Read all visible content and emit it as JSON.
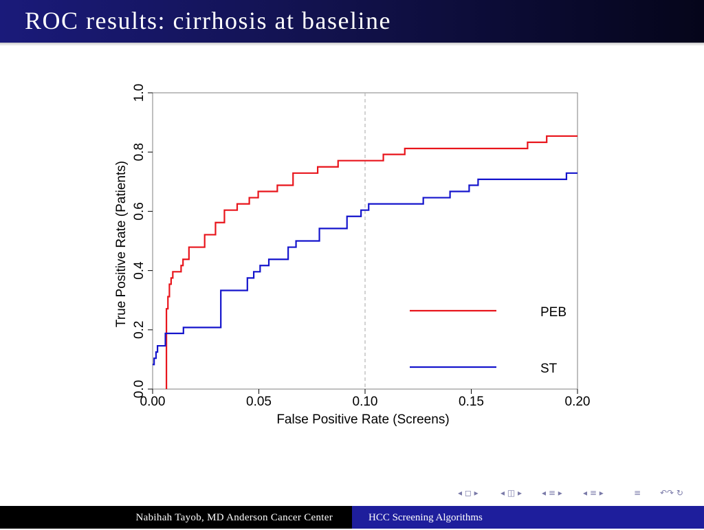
{
  "slide": {
    "title": "ROC results: cirrhosis at baseline"
  },
  "footer": {
    "left": "Nabihah Tayob, MD Anderson Cancer Center",
    "right": "HCC Screening Algorithms"
  },
  "nav": {
    "icons": [
      "◂ ◻ ▸",
      "◂ ◫ ▸",
      "◂ ≡ ▸",
      "◂ ≡ ▸",
      "≡",
      "↶↷ ↻"
    ],
    "color": "#7a7aa8"
  },
  "colors": {
    "header_bg": "#12124e",
    "footer_left_bg": "#000000",
    "footer_right_bg": "#1e1e9c"
  },
  "chart_data": {
    "type": "line",
    "xlabel": "False Positive Rate (Screens)",
    "ylabel": "True Positive Rate (Patients)",
    "xlim": [
      0,
      0.2
    ],
    "ylim": [
      0,
      1.0
    ],
    "xticks": [
      "0.00",
      "0.05",
      "0.10",
      "0.15",
      "0.20"
    ],
    "yticks": [
      "0.0",
      "0.2",
      "0.4",
      "0.6",
      "0.8",
      "1.0"
    ],
    "reference_line": {
      "x": 0.1,
      "style": "dashed",
      "color": "#b4b4b4"
    },
    "legend": {
      "placement": "bottom-right"
    },
    "series": [
      {
        "name": "PEB",
        "color": "#e8141b",
        "step": true,
        "points": [
          [
            0.0065,
            0.0
          ],
          [
            0.0065,
            0.271
          ],
          [
            0.0072,
            0.271
          ],
          [
            0.0072,
            0.312
          ],
          [
            0.0079,
            0.312
          ],
          [
            0.0079,
            0.354
          ],
          [
            0.0087,
            0.354
          ],
          [
            0.0087,
            0.375
          ],
          [
            0.0095,
            0.375
          ],
          [
            0.0095,
            0.396
          ],
          [
            0.0134,
            0.396
          ],
          [
            0.0134,
            0.417
          ],
          [
            0.0143,
            0.417
          ],
          [
            0.0143,
            0.438
          ],
          [
            0.0171,
            0.438
          ],
          [
            0.0171,
            0.479
          ],
          [
            0.0245,
            0.479
          ],
          [
            0.0245,
            0.521
          ],
          [
            0.0296,
            0.521
          ],
          [
            0.0296,
            0.562
          ],
          [
            0.0338,
            0.562
          ],
          [
            0.0338,
            0.604
          ],
          [
            0.0398,
            0.604
          ],
          [
            0.0398,
            0.625
          ],
          [
            0.0455,
            0.625
          ],
          [
            0.0455,
            0.646
          ],
          [
            0.0497,
            0.646
          ],
          [
            0.0497,
            0.667
          ],
          [
            0.0587,
            0.667
          ],
          [
            0.0587,
            0.688
          ],
          [
            0.0661,
            0.688
          ],
          [
            0.0661,
            0.729
          ],
          [
            0.0777,
            0.729
          ],
          [
            0.0777,
            0.75
          ],
          [
            0.0873,
            0.75
          ],
          [
            0.0873,
            0.771
          ],
          [
            0.1086,
            0.771
          ],
          [
            0.1086,
            0.792
          ],
          [
            0.1187,
            0.792
          ],
          [
            0.1187,
            0.812
          ],
          [
            0.1765,
            0.812
          ],
          [
            0.1765,
            0.833
          ],
          [
            0.1855,
            0.833
          ],
          [
            0.1855,
            0.854
          ],
          [
            0.2,
            0.854
          ]
        ]
      },
      {
        "name": "ST",
        "color": "#1414cc",
        "step": true,
        "points": [
          [
            0.0,
            0.083
          ],
          [
            0.0007,
            0.083
          ],
          [
            0.0007,
            0.104
          ],
          [
            0.0016,
            0.104
          ],
          [
            0.0016,
            0.125
          ],
          [
            0.0023,
            0.125
          ],
          [
            0.0023,
            0.146
          ],
          [
            0.006,
            0.146
          ],
          [
            0.006,
            0.188
          ],
          [
            0.0145,
            0.188
          ],
          [
            0.0145,
            0.208
          ],
          [
            0.0321,
            0.208
          ],
          [
            0.0321,
            0.333
          ],
          [
            0.0446,
            0.333
          ],
          [
            0.0446,
            0.375
          ],
          [
            0.0476,
            0.375
          ],
          [
            0.0476,
            0.396
          ],
          [
            0.0506,
            0.396
          ],
          [
            0.0506,
            0.417
          ],
          [
            0.0547,
            0.417
          ],
          [
            0.0547,
            0.438
          ],
          [
            0.0638,
            0.438
          ],
          [
            0.0638,
            0.479
          ],
          [
            0.0675,
            0.479
          ],
          [
            0.0675,
            0.5
          ],
          [
            0.0785,
            0.5
          ],
          [
            0.0785,
            0.542
          ],
          [
            0.0915,
            0.542
          ],
          [
            0.0915,
            0.583
          ],
          [
            0.0981,
            0.583
          ],
          [
            0.0981,
            0.604
          ],
          [
            0.1017,
            0.604
          ],
          [
            0.1017,
            0.625
          ],
          [
            0.1274,
            0.625
          ],
          [
            0.1274,
            0.646
          ],
          [
            0.14,
            0.646
          ],
          [
            0.14,
            0.667
          ],
          [
            0.149,
            0.667
          ],
          [
            0.149,
            0.688
          ],
          [
            0.1532,
            0.688
          ],
          [
            0.1532,
            0.708
          ],
          [
            0.1948,
            0.708
          ],
          [
            0.1948,
            0.729
          ],
          [
            0.2,
            0.729
          ]
        ]
      }
    ]
  }
}
